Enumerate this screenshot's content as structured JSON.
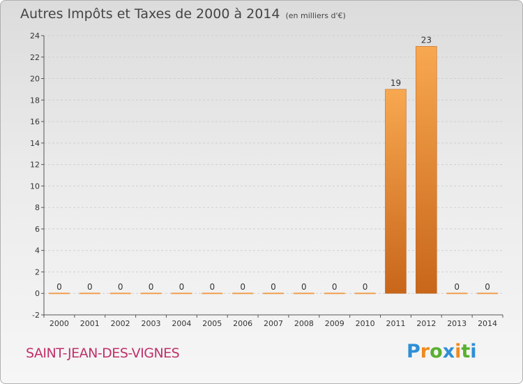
{
  "header": {
    "title": "Autres Impôts et Taxes de 2000 à 2014",
    "unit": "(en milliers d'€)"
  },
  "footer": {
    "commune": "SAINT-JEAN-DES-VIGNES",
    "logo_letters": [
      "P",
      "r",
      "o",
      "x",
      "i",
      "t",
      "i"
    ],
    "logo_colors": [
      "#2e8fd6",
      "#f08a1c",
      "#58b030",
      "#2e8fd6",
      "#f08a1c",
      "#58b030",
      "#2e8fd6"
    ]
  },
  "colors": {
    "bar_top": "#f8a850",
    "bar_bottom": "#c8661a",
    "zero_bar": "#f0a050",
    "axis": "#555555",
    "grid": "#cfcfcf",
    "text": "#333333"
  },
  "chart_data": {
    "type": "bar",
    "title": "Autres Impôts et Taxes de 2000 à 2014",
    "subtitle": "(en milliers d'€)",
    "xlabel": "",
    "ylabel": "",
    "categories": [
      "2000",
      "2001",
      "2002",
      "2003",
      "2004",
      "2005",
      "2006",
      "2007",
      "2008",
      "2009",
      "2010",
      "2011",
      "2012",
      "2013",
      "2014"
    ],
    "values": [
      0,
      0,
      0,
      0,
      0,
      0,
      0,
      0,
      0,
      0,
      0,
      19,
      23,
      0,
      0
    ],
    "data_labels": [
      "0",
      "0",
      "0",
      "0",
      "0",
      "0",
      "0",
      "0",
      "0",
      "0",
      "0",
      "19",
      "23",
      "0",
      "0"
    ],
    "ylim": [
      -2,
      24
    ],
    "yticks": [
      -2,
      0,
      2,
      4,
      6,
      8,
      10,
      12,
      14,
      16,
      18,
      20,
      22,
      24
    ],
    "grid": true,
    "legend": "none"
  }
}
